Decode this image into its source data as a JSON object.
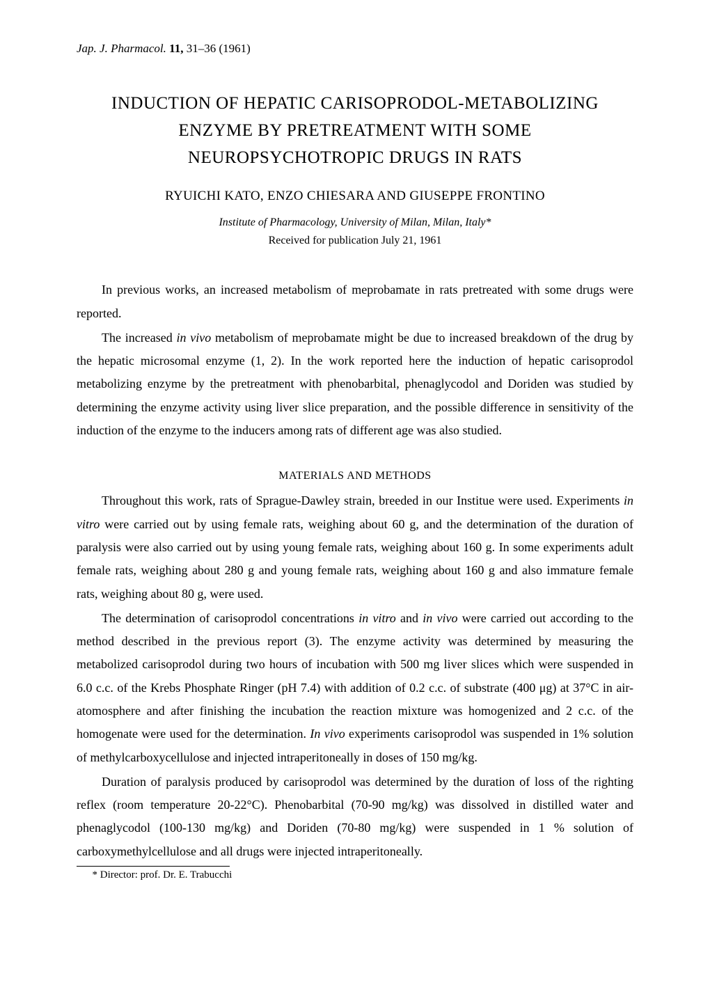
{
  "journal": {
    "name": "Jap. J. Pharmacol.",
    "volume": "11,",
    "pages": "31–36 (1961)"
  },
  "title_line1": "INDUCTION OF HEPATIC CARISOPRODOL-METABOLIZING",
  "title_line2": "ENZYME BY PRETREATMENT WITH SOME",
  "title_line3": "NEUROPSYCHOTROPIC DRUGS IN RATS",
  "authors": "RYUICHI KATO, ENZO CHIESARA AND GIUSEPPE FRONTINO",
  "affiliation": "Institute of Pharmacology, University of Milan, Milan, Italy*",
  "received": "Received for publication July 21, 1961",
  "intro_p1": "In previous works, an increased metabolism of meprobamate in rats pretreated with some drugs were reported.",
  "intro_p2_pre": "The increased ",
  "intro_p2_it1": "in vivo",
  "intro_p2_post": " metabolism of meprobamate might be due to increased breakdown of the drug by the hepatic microsomal enzyme (1, 2). In the work reported here the induction of hepatic carisoprodol metabolizing enzyme by the pretreatment with phenobarbital, phenaglycodol and Doriden was studied by determining the enzyme activity using liver slice preparation, and the possible difference in sensitivity of the induction of the enzyme to the inducers among rats of different age was also studied.",
  "section_heading": "MATERIALS AND METHODS",
  "methods_p1_pre": "Throughout this work, rats of Sprague-Dawley strain, breeded in our Institue were used. Experiments ",
  "methods_p1_it1": "in vitro",
  "methods_p1_post": " were carried out by using female rats, weighing about 60 g, and the determination of the duration of paralysis were also carried out by using young female rats, weighing about 160 g. In some experiments adult female rats, weighing about 280 g and young female rats, weighing about 160 g and also immature female rats, weighing about 80 g, were used.",
  "methods_p2_pre": "The determination of carisoprodol concentrations ",
  "methods_p2_it1": "in vitro",
  "methods_p2_mid1": " and ",
  "methods_p2_it2": "in vivo",
  "methods_p2_mid2": " were carried out according to the method described in the previous report (3). The enzyme activity was determined by measuring the metabolized carisoprodol during two hours of incubation with 500 mg liver slices which were suspended in 6.0 c.c. of the Krebs Phosphate Ringer (pH 7.4) with addition of 0.2 c.c. of substrate (400 μg) at 37°C in air-atomosphere and after finishing the incubation the reaction mixture was homogenized and 2 c.c. of the homogenate were used for the determination. ",
  "methods_p2_it3": "In vivo",
  "methods_p2_post": " experiments carisoprodol was suspended in 1% solution of methylcarboxycellulose and injected intraperitoneally in doses of 150 mg/kg.",
  "methods_p3": "Duration of paralysis produced by carisoprodol was determined by the duration of loss of the righting reflex (room temperature 20-22°C). Phenobarbital (70-90 mg/kg) was dissolved in distilled water and phenaglycodol (100-130 mg/kg) and Doriden (70-80 mg/kg) were suspended in 1 % solution of carboxymethylcellulose and all drugs were injected intraperitoneally.",
  "footnote": "* Director: prof. Dr. E. Trabucchi"
}
